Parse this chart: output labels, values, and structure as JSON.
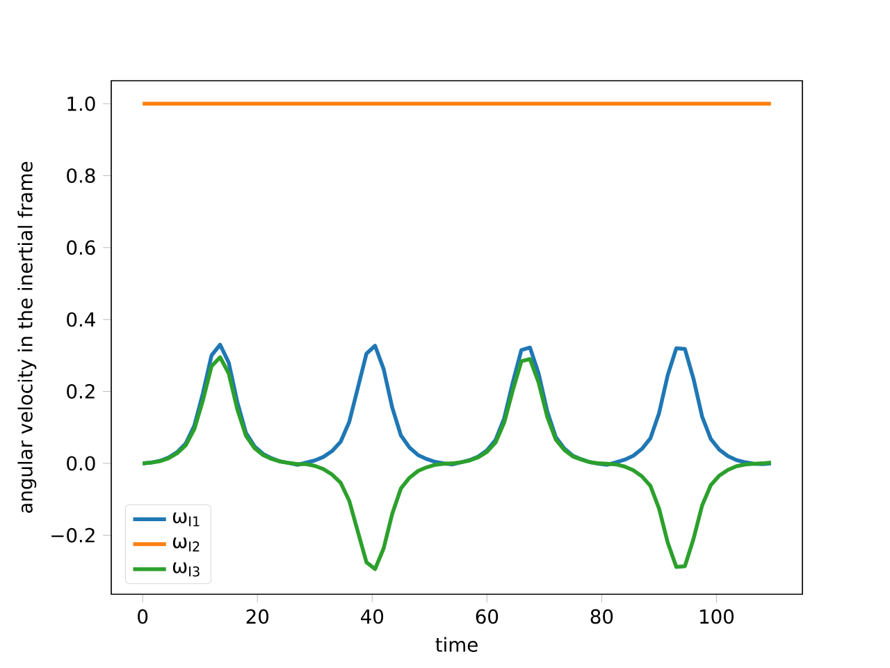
{
  "chart_data": {
    "type": "line",
    "xlabel": "time",
    "ylabel": "angular velocity in the inertial frame",
    "x": [
      0,
      1.5,
      3,
      4.5,
      6,
      7.5,
      9,
      10.5,
      12,
      13.5,
      15,
      16.5,
      18,
      19.5,
      21,
      22.5,
      24,
      25.5,
      27,
      28.5,
      30,
      31.5,
      33,
      34.5,
      36,
      37.5,
      39,
      40.5,
      42,
      43.5,
      45,
      46.5,
      48,
      49.5,
      51,
      52.5,
      54,
      55.5,
      57,
      58.5,
      60,
      61.5,
      63,
      64.5,
      66,
      67.5,
      69,
      70.5,
      72,
      73.5,
      75,
      76.5,
      78,
      79.5,
      81,
      82.5,
      84,
      85.5,
      87,
      88.5,
      90,
      91.5,
      93,
      94.5,
      96,
      97.5,
      99,
      100.5,
      102,
      103.5,
      105,
      106.5,
      108,
      109.5
    ],
    "series": [
      {
        "name": "ω$_{I1}$",
        "color": "#1f77b4",
        "values": [
          0,
          0.002,
          0.007,
          0.016,
          0.031,
          0.055,
          0.105,
          0.195,
          0.3,
          0.33,
          0.28,
          0.17,
          0.085,
          0.047,
          0.026,
          0.014,
          0.005,
          0.001,
          -0.004,
          0.002,
          0.008,
          0.018,
          0.034,
          0.06,
          0.115,
          0.21,
          0.305,
          0.327,
          0.262,
          0.155,
          0.078,
          0.044,
          0.023,
          0.012,
          0.004,
          0,
          -0.003,
          0.003,
          0.009,
          0.019,
          0.036,
          0.065,
          0.125,
          0.225,
          0.315,
          0.322,
          0.25,
          0.145,
          0.073,
          0.041,
          0.021,
          0.011,
          0.003,
          -0.001,
          -0.004,
          0.003,
          0.01,
          0.021,
          0.04,
          0.07,
          0.14,
          0.245,
          0.32,
          0.318,
          0.235,
          0.13,
          0.068,
          0.038,
          0.02,
          0.009,
          0.003,
          -0.001,
          -0.002,
          0
        ]
      },
      {
        "name": "ω$_{I2}$",
        "color": "#ff7f0e",
        "values": [
          1,
          1,
          1,
          1,
          1,
          1,
          1,
          1,
          1,
          1,
          1,
          1,
          1,
          1,
          1,
          1,
          1,
          1,
          1,
          1,
          1,
          1,
          1,
          1,
          1,
          1,
          1,
          1,
          1,
          1,
          1,
          1,
          1,
          1,
          1,
          1,
          1,
          1,
          1,
          1,
          1,
          1,
          1,
          1,
          1,
          1,
          1,
          1,
          1,
          1,
          1,
          1,
          1,
          1,
          1,
          1,
          1,
          1,
          1,
          1,
          1,
          1,
          1,
          1,
          1,
          1,
          1,
          1,
          1,
          1,
          1,
          1,
          1,
          1
        ]
      },
      {
        "name": "ω$_{I3}$",
        "color": "#2ca02c",
        "values": [
          0,
          0.002,
          0.006,
          0.014,
          0.028,
          0.05,
          0.095,
          0.175,
          0.27,
          0.295,
          0.25,
          0.15,
          0.077,
          0.042,
          0.023,
          0.012,
          0.005,
          0.001,
          -0.002,
          -0.002,
          -0.007,
          -0.016,
          -0.031,
          -0.054,
          -0.104,
          -0.19,
          -0.275,
          -0.294,
          -0.236,
          -0.14,
          -0.07,
          -0.04,
          -0.021,
          -0.011,
          -0.004,
          -0.001,
          0,
          0.003,
          0.008,
          0.017,
          0.032,
          0.058,
          0.113,
          0.203,
          0.284,
          0.29,
          0.225,
          0.13,
          0.066,
          0.037,
          0.019,
          0.01,
          0.003,
          0,
          -0.001,
          -0.003,
          -0.009,
          -0.019,
          -0.036,
          -0.063,
          -0.126,
          -0.22,
          -0.288,
          -0.286,
          -0.21,
          -0.117,
          -0.061,
          -0.034,
          -0.018,
          -0.008,
          -0.003,
          -0.001,
          0,
          0.002
        ]
      }
    ],
    "xlim": [
      -5.475,
      114.975
    ],
    "ylim": [
      -0.364,
      1.064
    ],
    "xticks": [
      0,
      20,
      40,
      60,
      80,
      100
    ],
    "yticks": [
      {
        "value": -0.2,
        "label": "−0.2"
      },
      {
        "value": 0,
        "label": "0.0"
      },
      0.2,
      0.4,
      0.6,
      0.8,
      {
        "value": 1,
        "label": "1.0"
      }
    ],
    "legend": "bottom left",
    "line_style": "solid",
    "marker": "none",
    "grid": false
  }
}
